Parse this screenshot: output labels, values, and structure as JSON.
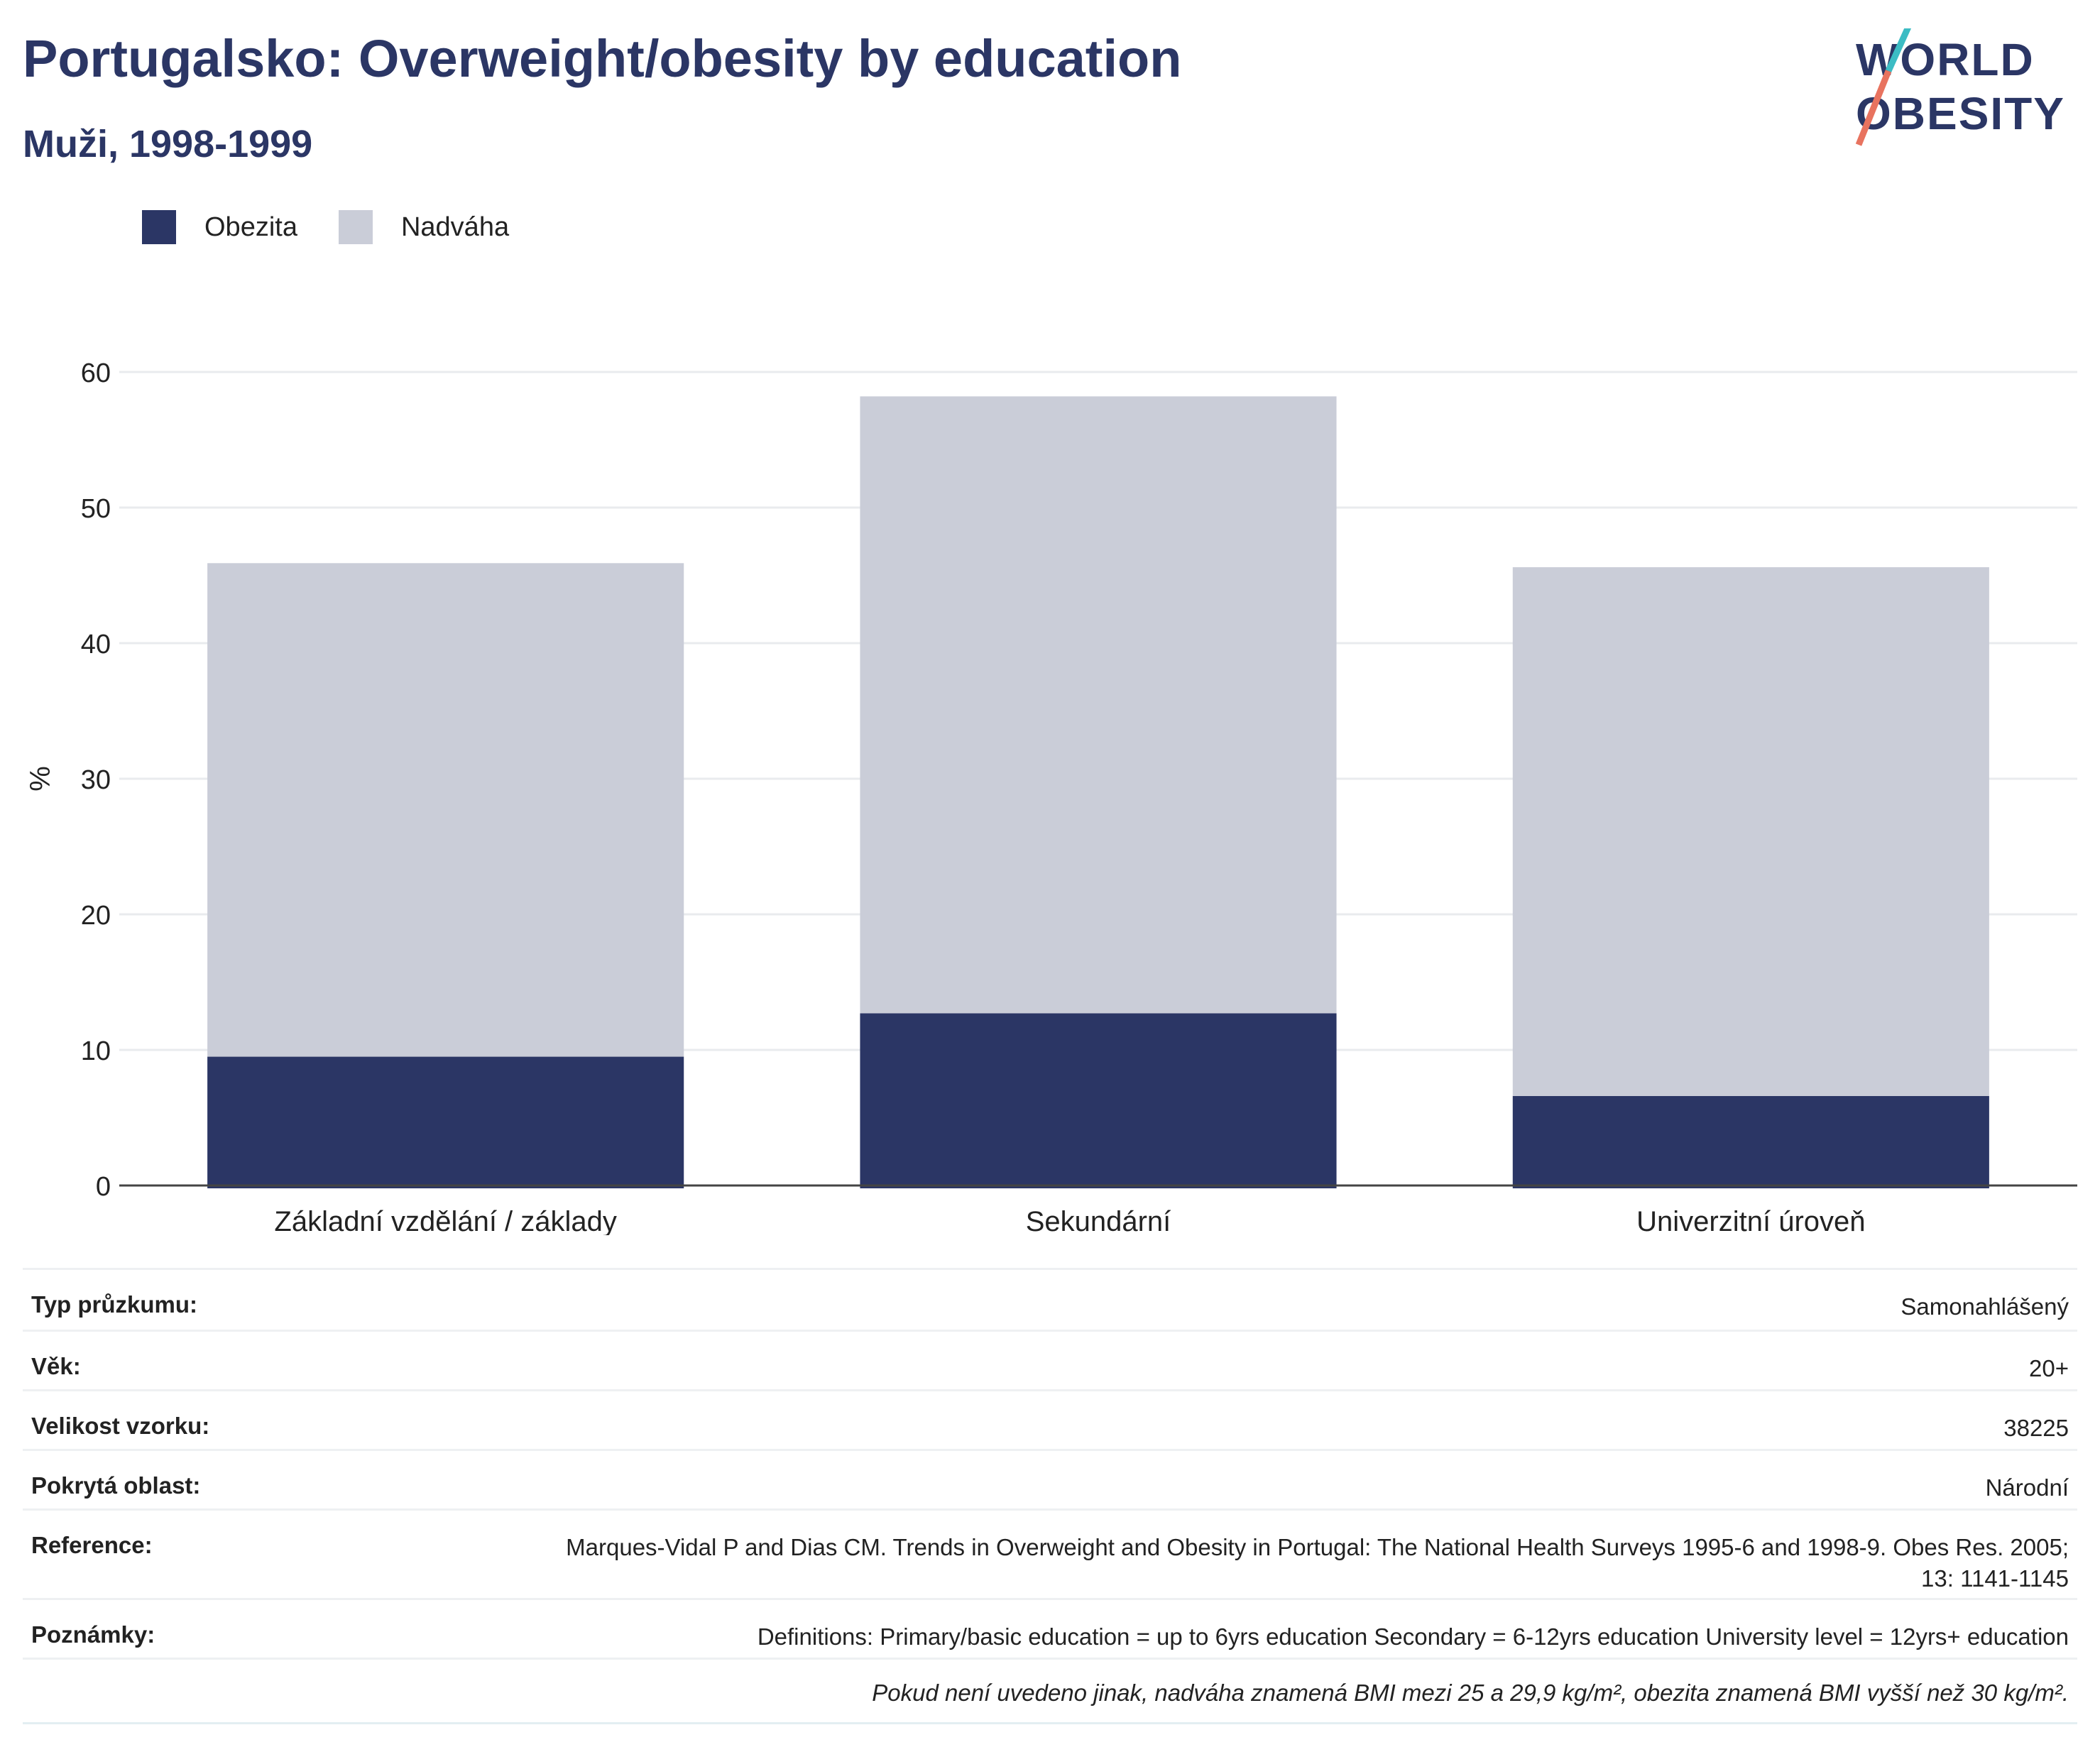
{
  "header": {
    "title": "Portugalsko: Overweight/obesity by education",
    "subtitle": "Muži, 1998-1999"
  },
  "logo": {
    "line1": "WORLD",
    "line2": "OBESITY"
  },
  "colors": {
    "obesity": "#2b3665",
    "overweight": "#cacdd8",
    "title": "#2b3665",
    "logo_teal": "#3cbcc4",
    "logo_coral": "#e8735f"
  },
  "chart_data": {
    "type": "bar",
    "stacked": true,
    "categories": [
      "Základní vzdělání / základy",
      "Sekundární",
      "Univerzitní úroveň"
    ],
    "series": [
      {
        "name": "Obezita",
        "values": [
          9.5,
          12.7,
          6.6
        ]
      },
      {
        "name": "Nadváha",
        "values": [
          36.4,
          45.5,
          39.0
        ]
      }
    ],
    "totals": [
      45.9,
      58.2,
      45.6
    ],
    "ylabel": "%",
    "xlabel": "",
    "ylim": [
      0,
      60
    ],
    "yticks": [
      0,
      10,
      20,
      30,
      40,
      50,
      60
    ],
    "grid": true,
    "legend_position": "top-left"
  },
  "info": {
    "rows": [
      {
        "label": "Typ průzkumu:",
        "value": "Samonahlášený"
      },
      {
        "label": "Věk:",
        "value": "20+"
      },
      {
        "label": "Velikost vzorku:",
        "value": "38225"
      },
      {
        "label": "Pokrytá oblast:",
        "value": "Národní"
      },
      {
        "label": "Reference:",
        "value": "Marques-Vidal P and Dias CM. Trends in Overweight and Obesity in Portugal: The National Health Surveys 1995-6 and 1998-9. Obes Res. 2005; 13: 1141-1145"
      },
      {
        "label": "Poznámky:",
        "value": "Definitions: Primary/basic education = up to 6yrs education Secondary = 6-12yrs education University level = 12yrs+ education"
      }
    ],
    "footnote": "Pokud není uvedeno jinak, nadváha znamená BMI mezi 25 a 29,9 kg/m², obezita znamená BMI vyšší než 30 kg/m²."
  }
}
